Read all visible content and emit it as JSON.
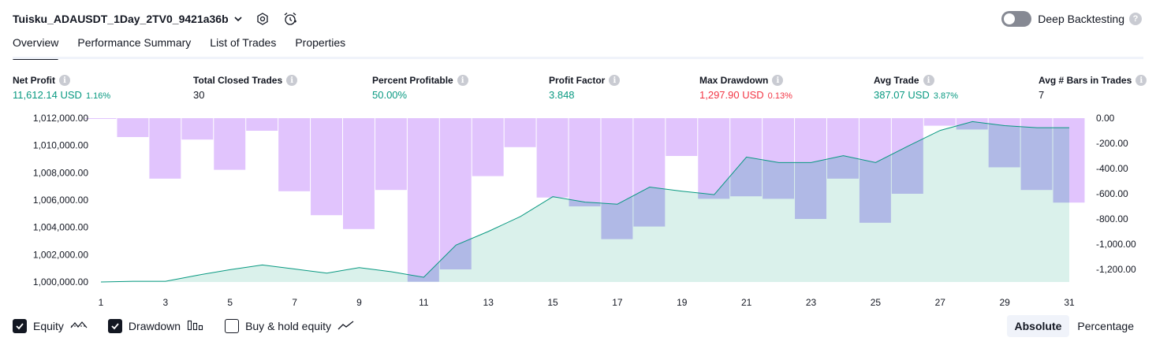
{
  "header": {
    "strategy_name": "Tuisku_ADAUSDT_1Day_2TV0_9421a36b"
  },
  "backtest": {
    "label": "Deep Backtesting",
    "enabled": false
  },
  "tabs": [
    {
      "label": "Overview",
      "active": true
    },
    {
      "label": "Performance Summary",
      "active": false
    },
    {
      "label": "List of Trades",
      "active": false
    },
    {
      "label": "Properties",
      "active": false
    }
  ],
  "metrics": [
    {
      "label": "Net Profit",
      "value": "11,612.14 USD",
      "pct": "1.16%",
      "tone": "pos"
    },
    {
      "label": "Total Closed Trades",
      "value": "30",
      "pct": "",
      "tone": "neu"
    },
    {
      "label": "Percent Profitable",
      "value": "50.00%",
      "pct": "",
      "tone": "pos"
    },
    {
      "label": "Profit Factor",
      "value": "3.848",
      "pct": "",
      "tone": "pos"
    },
    {
      "label": "Max Drawdown",
      "value": "1,297.90 USD",
      "pct": "0.13%",
      "tone": "neg"
    },
    {
      "label": "Avg Trade",
      "value": "387.07 USD",
      "pct": "3.87%",
      "tone": "pos"
    },
    {
      "label": "Avg # Bars in Trades",
      "value": "7",
      "pct": "",
      "tone": "neu"
    }
  ],
  "chart_data": {
    "type": "line",
    "x_ticks": [
      "1",
      "3",
      "5",
      "7",
      "9",
      "11",
      "13",
      "15",
      "17",
      "19",
      "21",
      "23",
      "25",
      "27",
      "29",
      "31"
    ],
    "left_axis_ticks": [
      "1,012,000.00",
      "1,010,000.00",
      "1,008,000.00",
      "1,006,000.00",
      "1,004,000.00",
      "1,002,000.00",
      "1,000,000.00"
    ],
    "left_ylim": [
      1000000,
      1012000
    ],
    "right_axis_ticks": [
      "0.00",
      "-200.00",
      "-400.00",
      "-600.00",
      "-800.00",
      "-1,000.00",
      "-1,200.00"
    ],
    "right_ylim": [
      -1300,
      0
    ],
    "series": [
      {
        "name": "Equity",
        "axis": "left",
        "x": [
          1,
          2,
          3,
          4,
          5,
          6,
          7,
          8,
          9,
          10,
          11,
          12,
          13,
          14,
          15,
          16,
          17,
          18,
          19,
          20,
          21,
          22,
          23,
          24,
          25,
          26,
          27,
          28,
          29,
          30,
          31
        ],
        "values": [
          1000000,
          1000050,
          1000050,
          1000500,
          1000900,
          1001250,
          1000950,
          1000650,
          1001050,
          1000750,
          1000350,
          1002700,
          1003700,
          1004800,
          1006250,
          1005850,
          1005700,
          1006950,
          1006650,
          1006400,
          1009150,
          1008750,
          1008750,
          1009250,
          1008750,
          1009950,
          1011100,
          1011750,
          1011450,
          1011300,
          1011300
        ]
      },
      {
        "name": "Drawdown",
        "axis": "right",
        "x": [
          1,
          2,
          3,
          4,
          5,
          6,
          7,
          8,
          9,
          10,
          11,
          12,
          13,
          14,
          15,
          16,
          17,
          18,
          19,
          20,
          21,
          22,
          23,
          24,
          25,
          26,
          27,
          28,
          29,
          30,
          31
        ],
        "values": [
          0,
          -150,
          -480,
          -170,
          -410,
          -100,
          -580,
          -770,
          -880,
          -570,
          -1297.9,
          -1200,
          -460,
          -230,
          -630,
          -700,
          -960,
          -860,
          -300,
          -640,
          -620,
          -640,
          -800,
          -480,
          -830,
          -600,
          -60,
          -90,
          -390,
          -570,
          -670
        ]
      }
    ],
    "colors": {
      "equity": "#089981",
      "equity_fill": "#d4efe8",
      "drawdown": "#e1c4fd",
      "drawdown_overlap": "#b0b9e6"
    }
  },
  "legend": [
    {
      "label": "Equity",
      "checked": true,
      "icon": "equity-line-icon"
    },
    {
      "label": "Drawdown",
      "checked": true,
      "icon": "drawdown-bars-icon"
    },
    {
      "label": "Buy & hold equity",
      "checked": false,
      "icon": "buyhold-line-icon"
    }
  ],
  "view_toggle": {
    "absolute": "Absolute",
    "percentage": "Percentage",
    "active": "absolute"
  }
}
